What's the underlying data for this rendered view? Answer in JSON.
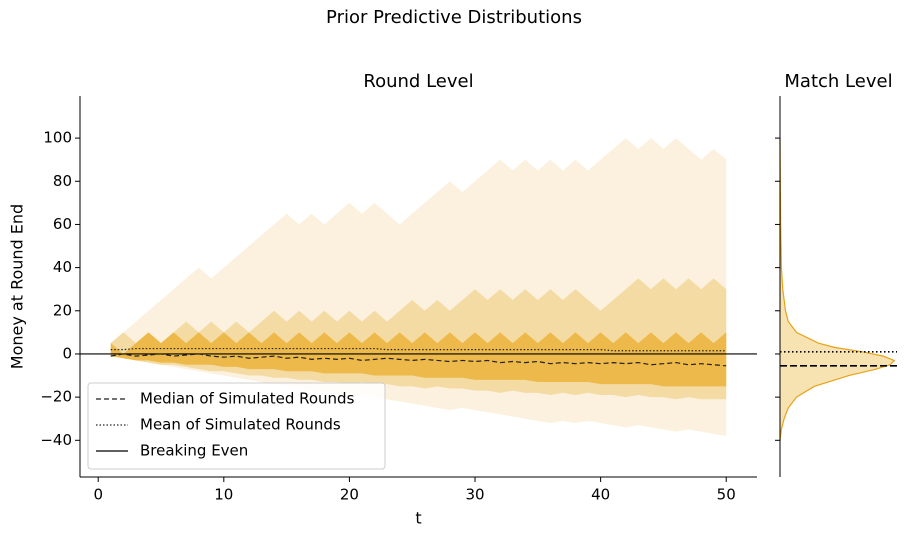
{
  "title": "Prior Predictive Distributions",
  "chart_data": [
    {
      "type": "fan",
      "title": "Round Level",
      "x_label": "t",
      "y_label": "Money at Round End",
      "x": [
        1,
        2,
        3,
        4,
        5,
        6,
        7,
        8,
        9,
        10,
        11,
        12,
        13,
        14,
        15,
        16,
        17,
        18,
        19,
        20,
        21,
        22,
        23,
        24,
        25,
        26,
        27,
        28,
        29,
        30,
        31,
        32,
        33,
        34,
        35,
        36,
        37,
        38,
        39,
        40,
        41,
        42,
        43,
        44,
        45,
        46,
        47,
        48,
        49,
        50
      ],
      "bands": [
        {
          "color": "#fbf1de",
          "upper": [
            5,
            10,
            15,
            20,
            25,
            30,
            35,
            40,
            35,
            40,
            45,
            50,
            55,
            60,
            65,
            60,
            65,
            60,
            65,
            70,
            65,
            70,
            65,
            60,
            65,
            70,
            75,
            80,
            75,
            80,
            85,
            90,
            85,
            90,
            85,
            90,
            85,
            90,
            85,
            90,
            95,
            100,
            95,
            100,
            95,
            100,
            95,
            90,
            95,
            90
          ],
          "lower": [
            -1,
            -2,
            -3,
            -4,
            -5,
            -6,
            -7,
            -8,
            -9,
            -10,
            -11,
            -12,
            -13,
            -14,
            -15,
            -16,
            -17,
            -18,
            -19,
            -20,
            -19,
            -20,
            -21,
            -22,
            -23,
            -24,
            -25,
            -26,
            -25,
            -26,
            -27,
            -28,
            -29,
            -30,
            -31,
            -32,
            -31,
            -32,
            -31,
            -32,
            -33,
            -34,
            -33,
            -34,
            -35,
            -36,
            -35,
            -36,
            -37,
            -38
          ]
        },
        {
          "color": "#f4dba4",
          "upper": [
            5,
            10,
            5,
            10,
            5,
            10,
            15,
            10,
            15,
            10,
            15,
            10,
            15,
            20,
            15,
            20,
            15,
            20,
            15,
            20,
            15,
            20,
            15,
            20,
            25,
            20,
            25,
            20,
            25,
            30,
            25,
            30,
            25,
            30,
            25,
            30,
            25,
            30,
            25,
            20,
            25,
            30,
            35,
            30,
            35,
            30,
            35,
            30,
            35,
            30
          ],
          "lower": [
            -1,
            -2,
            -3,
            -4,
            -5,
            -5,
            -6,
            -7,
            -8,
            -8,
            -9,
            -10,
            -10,
            -11,
            -11,
            -12,
            -12,
            -13,
            -13,
            -14,
            -13,
            -14,
            -14,
            -15,
            -15,
            -16,
            -15,
            -16,
            -16,
            -17,
            -17,
            -18,
            -17,
            -18,
            -18,
            -19,
            -18,
            -19,
            -18,
            -19,
            -19,
            -20,
            -19,
            -20,
            -20,
            -21,
            -20,
            -21,
            -21,
            -21
          ]
        },
        {
          "color": "#edb94a",
          "upper": [
            5,
            0,
            5,
            10,
            5,
            10,
            5,
            10,
            5,
            10,
            5,
            10,
            5,
            10,
            5,
            10,
            5,
            10,
            5,
            10,
            5,
            10,
            5,
            10,
            5,
            10,
            5,
            10,
            5,
            10,
            5,
            10,
            5,
            10,
            5,
            10,
            5,
            10,
            5,
            10,
            5,
            10,
            5,
            10,
            5,
            10,
            5,
            10,
            5,
            10
          ],
          "lower": [
            -1,
            -2,
            -3,
            -3,
            -4,
            -4,
            -5,
            -5,
            -5,
            -6,
            -6,
            -7,
            -7,
            -7,
            -8,
            -8,
            -8,
            -9,
            -9,
            -9,
            -9,
            -10,
            -10,
            -10,
            -10,
            -11,
            -11,
            -11,
            -11,
            -12,
            -12,
            -12,
            -12,
            -12,
            -13,
            -13,
            -13,
            -13,
            -13,
            -14,
            -14,
            -14,
            -14,
            -14,
            -15,
            -15,
            -15,
            -15,
            -15,
            -15
          ]
        }
      ],
      "series": [
        {
          "name": "Median of Simulated Rounds",
          "color": "#222222",
          "style": "dashed",
          "values": [
            -1,
            0,
            -1,
            -0.5,
            0,
            -1,
            -0.5,
            0,
            -1,
            -1.5,
            -1,
            -2,
            -1.5,
            -1,
            -2,
            -1.5,
            -2.5,
            -2,
            -2.5,
            -2,
            -3,
            -2.5,
            -2,
            -2.5,
            -3,
            -2.5,
            -3,
            -3.5,
            -3,
            -3.5,
            -3,
            -4,
            -3.5,
            -4,
            -3.5,
            -4.5,
            -4,
            -4.5,
            -4,
            -4.5,
            -4,
            -4.5,
            -4,
            -5,
            -4.5,
            -4,
            -5,
            -4.5,
            -5,
            -5.5
          ]
        },
        {
          "name": "Mean of Simulated Rounds",
          "color": "#222222",
          "style": "dotted",
          "values": [
            2,
            2,
            2.5,
            2.5,
            2.5,
            2.5,
            2.5,
            2.5,
            2.5,
            2.5,
            2.5,
            2.5,
            2.5,
            2.5,
            2.5,
            2.5,
            2.5,
            2.5,
            2.5,
            2.5,
            2.5,
            2.5,
            2,
            2,
            2,
            2,
            2,
            2,
            2,
            2,
            2,
            2,
            2,
            2,
            2,
            2,
            2,
            2,
            2,
            2,
            1.5,
            1.5,
            1.5,
            1.5,
            1.5,
            1.5,
            1.5,
            1.5,
            1.5,
            1.5
          ]
        }
      ],
      "reference": {
        "name": "Breaking Even",
        "value": 0,
        "color": "#000000"
      },
      "legend": "lower left",
      "xlim": [
        -1.45,
        52.45
      ],
      "ylim": [
        -57,
        119.5
      ],
      "xticks": [
        0,
        10,
        20,
        30,
        40,
        50
      ],
      "yticks": [
        {
          "value": -40,
          "label": "−40"
        },
        {
          "value": -20,
          "label": "−20"
        },
        0,
        20,
        40,
        60,
        80,
        100
      ]
    },
    {
      "type": "density",
      "title": "Match Level",
      "color": "#e8a317",
      "fill": "#f7e2b2",
      "y": [
        -40,
        -35,
        -30,
        -25,
        -20,
        -15,
        -10,
        -7,
        -5,
        -3,
        -1,
        1,
        3,
        5,
        10,
        15,
        20,
        30,
        40,
        60,
        80,
        100
      ],
      "density": [
        0,
        0.001,
        0.003,
        0.006,
        0.012,
        0.025,
        0.05,
        0.07,
        0.08,
        0.083,
        0.075,
        0.06,
        0.04,
        0.028,
        0.012,
        0.006,
        0.004,
        0.002,
        0.001,
        0.0005,
        0.0002,
        0
      ],
      "lines": [
        {
          "value": -5.5,
          "style": "dashed"
        },
        {
          "value": 1,
          "style": "dotted"
        }
      ],
      "xlim": [
        0,
        0.085
      ],
      "ylim": [
        -57,
        119.5
      ],
      "yticks": [
        -40,
        -20,
        0,
        20,
        40,
        60,
        80,
        100
      ]
    }
  ]
}
